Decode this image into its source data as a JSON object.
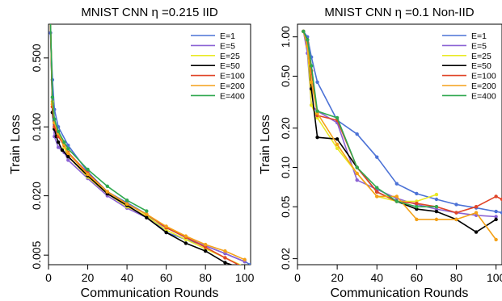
{
  "chart_data": [
    {
      "type": "line",
      "title": "MNIST CNN  η =0.215 IID",
      "xlabel": "Communication Rounds",
      "ylabel": "Train Loss",
      "x_scale": "linear",
      "y_scale": "log",
      "xlim": [
        0,
        103
      ],
      "ylim": [
        0.004,
        1.1
      ],
      "x_ticks": [
        0,
        20,
        40,
        60,
        80,
        100
      ],
      "x_tick_labels": [
        "0",
        "20",
        "40",
        "60",
        "80",
        "100"
      ],
      "y_ticks": [
        0.005,
        0.02,
        0.1,
        0.5
      ],
      "y_tick_labels": [
        "0.005",
        "0.020",
        "0.100",
        "0.500"
      ],
      "grid": false,
      "legend_position": "top-right",
      "series": [
        {
          "name": "E=1",
          "color": "#4c72d6",
          "x": [
            1,
            2,
            3,
            5,
            10,
            20,
            30,
            40,
            50,
            60,
            70,
            80,
            90,
            100,
            103
          ],
          "y": [
            0.9,
            0.3,
            0.15,
            0.1,
            0.065,
            0.035,
            0.022,
            0.017,
            0.013,
            0.0085,
            0.0072,
            0.0062,
            0.0052,
            0.0043,
            0.004
          ]
        },
        {
          "name": "E=5",
          "color": "#8a62d4",
          "x": [
            1,
            2,
            3,
            5,
            8,
            10,
            20,
            30,
            40,
            50,
            60,
            70,
            80,
            90,
            100
          ],
          "y": [
            1.2,
            0.14,
            0.08,
            0.062,
            0.055,
            0.046,
            0.03,
            0.02,
            0.015,
            0.012,
            0.0095,
            0.0075,
            0.0062,
            0.0052,
            0.0043
          ]
        },
        {
          "name": "E=25",
          "color": "#e9e925",
          "x": [
            1,
            2,
            3,
            5,
            8,
            10,
            20,
            30,
            40,
            50,
            60,
            70,
            80,
            90,
            100
          ],
          "y": [
            1.2,
            0.18,
            0.11,
            0.085,
            0.062,
            0.05,
            0.031,
            0.021,
            0.0155,
            0.0125,
            0.009,
            0.0072,
            0.0058,
            0.0047,
            0.0038
          ]
        },
        {
          "name": "E=50",
          "color": "#000000",
          "x": [
            1,
            2,
            3,
            4,
            5,
            7,
            10,
            20,
            30,
            40,
            50,
            60,
            70,
            80,
            90,
            100
          ],
          "y": [
            1.2,
            0.14,
            0.095,
            0.08,
            0.07,
            0.058,
            0.05,
            0.032,
            0.021,
            0.016,
            0.012,
            0.0085,
            0.0066,
            0.0055,
            0.0042,
            0.0036
          ]
        },
        {
          "name": "E=100",
          "color": "#e04428",
          "x": [
            1,
            2,
            3,
            5,
            8,
            10,
            20,
            30,
            40,
            50,
            60,
            70,
            80,
            90,
            100
          ],
          "y": [
            1.2,
            0.16,
            0.1,
            0.08,
            0.065,
            0.055,
            0.034,
            0.022,
            0.0165,
            0.013,
            0.0095,
            0.0076,
            0.006,
            0.0047,
            0.0037
          ]
        },
        {
          "name": "E=200",
          "color": "#f4a118",
          "x": [
            1,
            2,
            3,
            5,
            8,
            10,
            20,
            30,
            40,
            50,
            60,
            70,
            80,
            90,
            100
          ],
          "y": [
            1.2,
            0.17,
            0.11,
            0.085,
            0.066,
            0.054,
            0.033,
            0.022,
            0.0165,
            0.013,
            0.0098,
            0.0078,
            0.0064,
            0.0055,
            0.0045
          ]
        },
        {
          "name": "E=400",
          "color": "#2fa84f",
          "x": [
            1,
            2,
            3,
            5,
            8,
            10,
            20,
            30,
            40,
            50
          ],
          "y": [
            1.2,
            0.2,
            0.12,
            0.09,
            0.07,
            0.06,
            0.037,
            0.025,
            0.018,
            0.014
          ]
        }
      ]
    },
    {
      "type": "line",
      "title": "MNIST CNN  η =0.1 Non-IID",
      "xlabel": "Communication Rounds",
      "ylabel": "Train Loss",
      "x_scale": "linear",
      "y_scale": "log",
      "xlim": [
        0,
        103
      ],
      "ylim": [
        0.018,
        1.25
      ],
      "x_ticks": [
        0,
        20,
        40,
        60,
        80,
        100
      ],
      "x_tick_labels": [
        "0",
        "20",
        "40",
        "60",
        "80",
        "100"
      ],
      "y_ticks": [
        0.02,
        0.05,
        0.1,
        0.2,
        0.5,
        1.0
      ],
      "y_tick_labels": [
        "0.02",
        "0.05",
        "0.10",
        "0.20",
        "0.50",
        "1.00"
      ],
      "grid": false,
      "legend_position": "top-right",
      "series": [
        {
          "name": "E=1",
          "color": "#4c72d6",
          "x": [
            3,
            5,
            7,
            10,
            20,
            30,
            40,
            50,
            60,
            70,
            80,
            90,
            100,
            103
          ],
          "y": [
            1.1,
            1.0,
            0.7,
            0.45,
            0.23,
            0.18,
            0.12,
            0.075,
            0.063,
            0.057,
            0.052,
            0.049,
            0.046,
            0.045
          ]
        },
        {
          "name": "E=5",
          "color": "#8a62d4",
          "x": [
            3,
            5,
            7,
            10,
            20,
            30,
            40,
            50,
            60,
            70,
            80,
            90,
            100
          ],
          "y": [
            1.1,
            0.75,
            0.3,
            0.27,
            0.22,
            0.08,
            0.068,
            0.058,
            0.052,
            0.048,
            0.045,
            0.043,
            0.042
          ]
        },
        {
          "name": "E=25",
          "color": "#e9e925",
          "x": [
            3,
            5,
            7,
            10,
            20,
            30,
            40,
            50,
            60,
            70
          ],
          "y": [
            1.1,
            0.85,
            0.3,
            0.24,
            0.14,
            0.09,
            0.06,
            0.055,
            0.055,
            0.062
          ]
        },
        {
          "name": "E=50",
          "color": "#000000",
          "x": [
            3,
            5,
            7,
            10,
            20,
            30,
            40,
            50,
            60,
            70,
            80,
            90,
            100
          ],
          "y": [
            1.1,
            0.95,
            0.4,
            0.17,
            0.165,
            0.1,
            0.065,
            0.055,
            0.048,
            0.046,
            0.04,
            0.032,
            0.04
          ]
        },
        {
          "name": "E=100",
          "color": "#e04428",
          "x": [
            3,
            5,
            7,
            10,
            20,
            30,
            40,
            50,
            60,
            70,
            80,
            90,
            100,
            103
          ],
          "y": [
            1.1,
            0.9,
            0.55,
            0.25,
            0.23,
            0.1,
            0.065,
            0.055,
            0.053,
            0.05,
            0.045,
            0.05,
            0.06,
            0.057
          ]
        },
        {
          "name": "E=200",
          "color": "#f4a118",
          "x": [
            3,
            5,
            7,
            10,
            20,
            30,
            40,
            50,
            60,
            70,
            80,
            90,
            100
          ],
          "y": [
            1.1,
            0.85,
            0.45,
            0.26,
            0.15,
            0.09,
            0.06,
            0.06,
            0.04,
            0.04,
            0.04,
            0.045,
            0.028
          ]
        },
        {
          "name": "E=400",
          "color": "#2fa84f",
          "x": [
            3,
            5,
            7,
            10,
            20,
            30,
            40,
            50,
            60,
            70
          ],
          "y": [
            1.1,
            0.95,
            0.6,
            0.27,
            0.24,
            0.1,
            0.07,
            0.055,
            0.05,
            0.05
          ]
        }
      ]
    }
  ]
}
